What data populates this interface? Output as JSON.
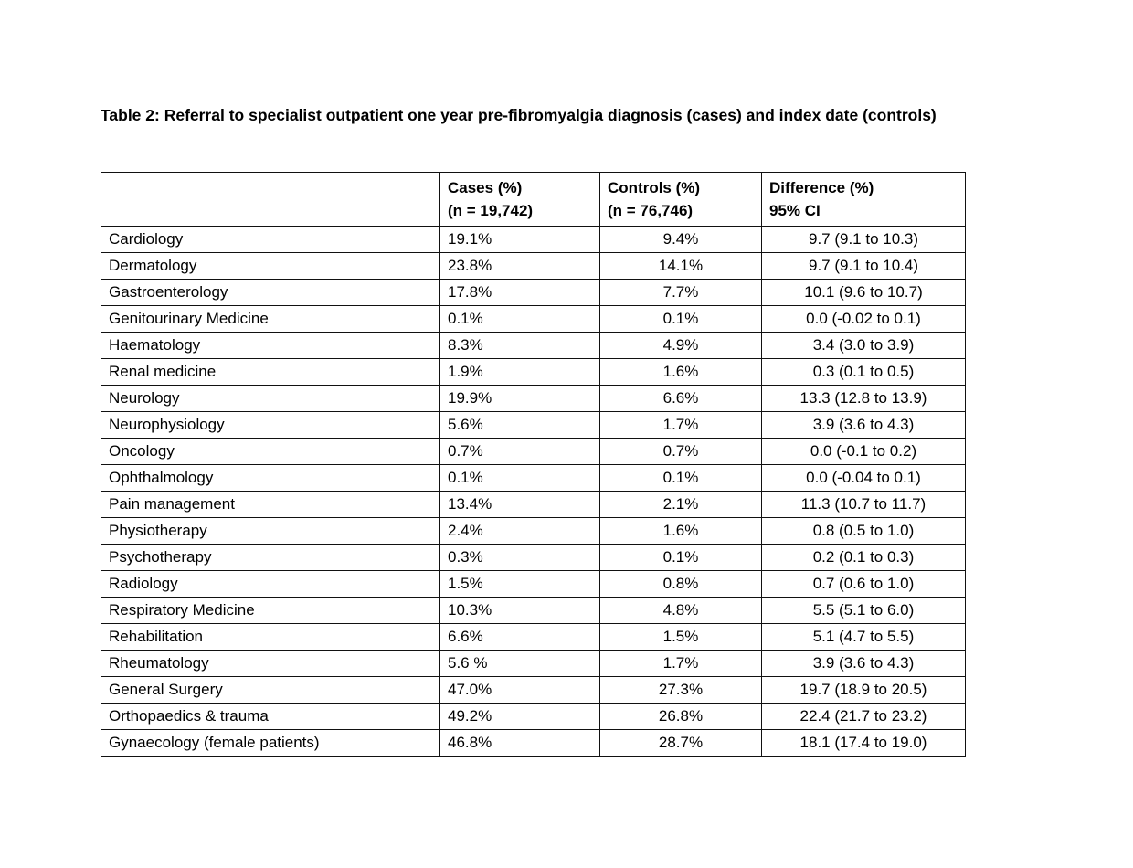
{
  "page": {
    "title": "Table 2: Referral to specialist outpatient one year pre-fibromyalgia diagnosis (cases) and index date (controls)"
  },
  "table": {
    "columns": [
      {
        "label_line1": "",
        "label_line2": ""
      },
      {
        "label_line1": "Cases (%)",
        "label_line2": "(n = 19,742)"
      },
      {
        "label_line1": "Controls (%)",
        "label_line2": "(n = 76,746)"
      },
      {
        "label_line1": "Difference (%)",
        "label_line2": "95% CI"
      }
    ],
    "rows": [
      {
        "specialty": "Cardiology",
        "cases": "19.1%",
        "controls": "9.4%",
        "difference": "9.7 (9.1 to 10.3)"
      },
      {
        "specialty": "Dermatology",
        "cases": "23.8%",
        "controls": "14.1%",
        "difference": "9.7 (9.1 to 10.4)"
      },
      {
        "specialty": "Gastroenterology",
        "cases": "17.8%",
        "controls": "7.7%",
        "difference": "10.1 (9.6 to 10.7)"
      },
      {
        "specialty": "Genitourinary Medicine",
        "cases": "0.1%",
        "controls": "0.1%",
        "difference": "0.0 (-0.02 to 0.1)"
      },
      {
        "specialty": "Haematology",
        "cases": "8.3%",
        "controls": "4.9%",
        "difference": "3.4 (3.0 to 3.9)"
      },
      {
        "specialty": "Renal medicine",
        "cases": "1.9%",
        "controls": "1.6%",
        "difference": "0.3 (0.1 to 0.5)"
      },
      {
        "specialty": "Neurology",
        "cases": "19.9%",
        "controls": "6.6%",
        "difference": "13.3 (12.8 to 13.9)"
      },
      {
        "specialty": "Neurophysiology",
        "cases": "5.6%",
        "controls": "1.7%",
        "difference": "3.9 (3.6 to 4.3)"
      },
      {
        "specialty": "Oncology",
        "cases": "0.7%",
        "controls": "0.7%",
        "difference": "0.0 (-0.1 to 0.2)"
      },
      {
        "specialty": "Ophthalmology",
        "cases": "0.1%",
        "controls": "0.1%",
        "difference": "0.0 (-0.04 to 0.1)"
      },
      {
        "specialty": "Pain management",
        "cases": "13.4%",
        "controls": "2.1%",
        "difference": "11.3 (10.7 to 11.7)"
      },
      {
        "specialty": "Physiotherapy",
        "cases": "2.4%",
        "controls": "1.6%",
        "difference": "0.8 (0.5 to 1.0)"
      },
      {
        "specialty": "Psychotherapy",
        "cases": "0.3%",
        "controls": "0.1%",
        "difference": "0.2 (0.1 to 0.3)"
      },
      {
        "specialty": "Radiology",
        "cases": "1.5%",
        "controls": "0.8%",
        "difference": "0.7 (0.6 to 1.0)"
      },
      {
        "specialty": "Respiratory Medicine",
        "cases": "10.3%",
        "controls": "4.8%",
        "difference": "5.5 (5.1 to 6.0)"
      },
      {
        "specialty": "Rehabilitation",
        "cases": "6.6%",
        "controls": "1.5%",
        "difference": "5.1 (4.7 to 5.5)"
      },
      {
        "specialty": "Rheumatology",
        "cases": "5.6 %",
        "controls": "1.7%",
        "difference": "3.9 (3.6 to 4.3)"
      },
      {
        "specialty": "General Surgery",
        "cases": "47.0%",
        "controls": "27.3%",
        "difference": "19.7 (18.9 to 20.5)"
      },
      {
        "specialty": "Orthopaedics & trauma",
        "cases": "49.2%",
        "controls": "26.8%",
        "difference": "22.4 (21.7 to 23.2)"
      },
      {
        "specialty": "Gynaecology (female patients)",
        "cases": "46.8%",
        "controls": "28.7%",
        "difference": "18.1 (17.4 to 19.0)"
      }
    ]
  }
}
